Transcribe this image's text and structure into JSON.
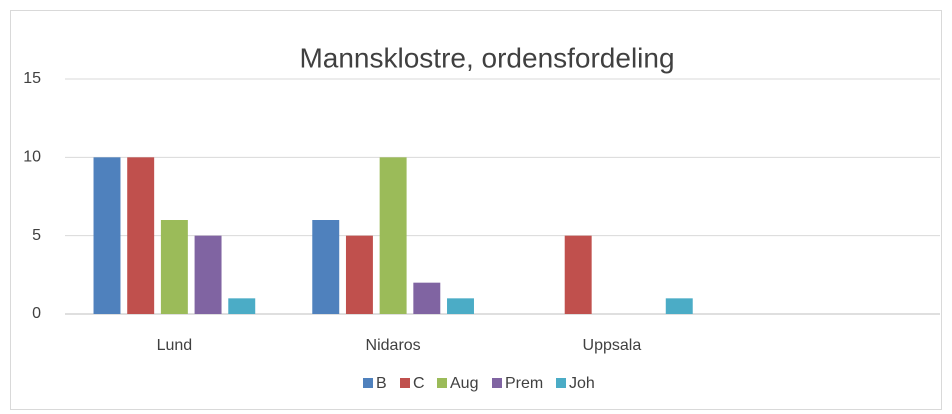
{
  "chart_data": {
    "type": "bar",
    "title": "Mannsklostre, ordensfordeling",
    "categories": [
      "Lund",
      "Nidaros",
      "Uppsala",
      null
    ],
    "series": [
      {
        "name": "B",
        "color": "#4f81bd",
        "values": [
          10,
          6,
          0,
          null
        ]
      },
      {
        "name": "C",
        "color": "#c0504d",
        "values": [
          10,
          5,
          5,
          null
        ]
      },
      {
        "name": "Aug",
        "color": "#9bbb59",
        "values": [
          6,
          10,
          0,
          null
        ]
      },
      {
        "name": "Prem",
        "color": "#8064a2",
        "values": [
          5,
          2,
          0,
          null
        ]
      },
      {
        "name": "Joh",
        "color": "#4bacc6",
        "values": [
          1,
          1,
          1,
          null
        ]
      }
    ],
    "ylim": [
      0,
      15
    ],
    "yticks": [
      0,
      5,
      10,
      15
    ],
    "grid": true,
    "legend": "bottom"
  }
}
